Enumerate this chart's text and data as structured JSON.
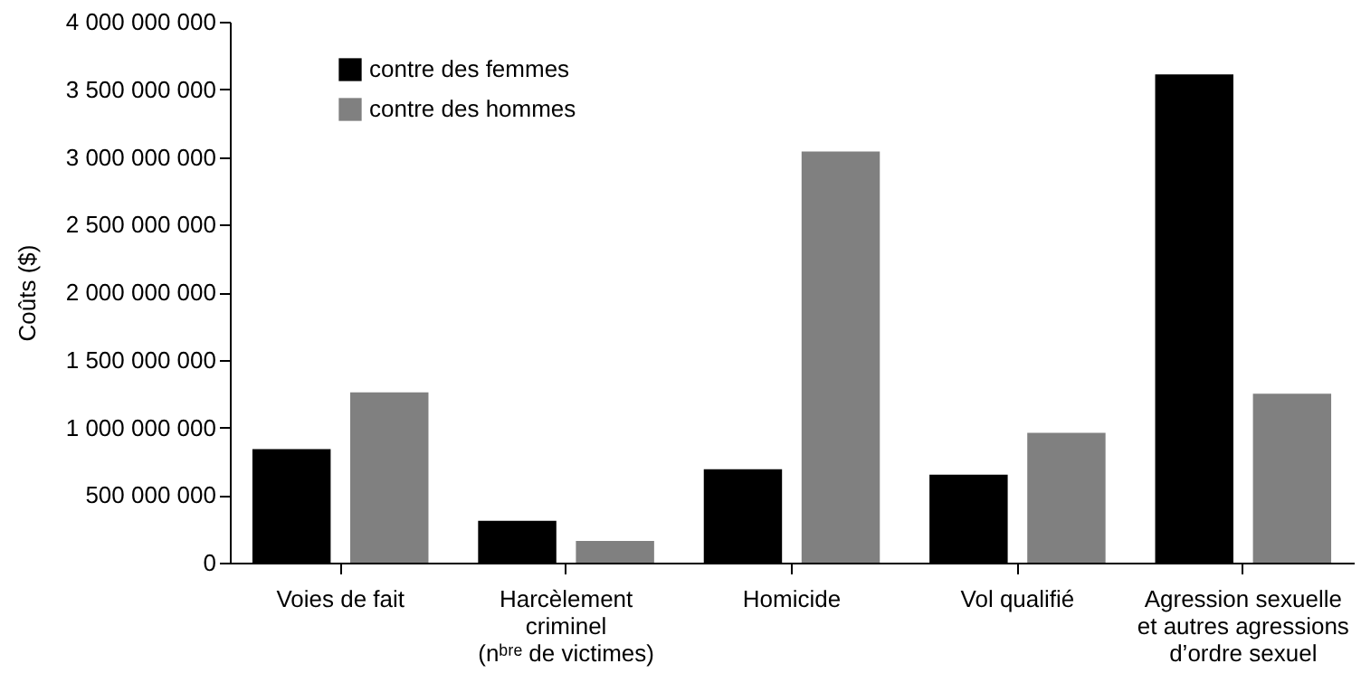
{
  "chart_data": {
    "type": "bar",
    "ylabel": "Coûts ($)",
    "categories": [
      "Voies de fait",
      "Harcèlement\ncriminel\n(nᵇʳᵉ de victimes)",
      "Homicide",
      "Vol qualifié",
      "Agression sexuelle\net autres agressions\nd’ordre sexuel"
    ],
    "series": [
      {
        "name": "contre des femmes",
        "color": "#000000",
        "values": [
          840000000,
          310000000,
          690000000,
          650000000,
          3610000000
        ]
      },
      {
        "name": "contre des hommes",
        "color": "#808080",
        "values": [
          1260000000,
          160000000,
          3040000000,
          960000000,
          1250000000
        ]
      }
    ],
    "ylim": [
      0,
      4000000000
    ],
    "yticks": [
      {
        "value": 0,
        "label": "0"
      },
      {
        "value": 500000000,
        "label": "500 000 000"
      },
      {
        "value": 1000000000,
        "label": "1 000 000 000"
      },
      {
        "value": 1500000000,
        "label": "1 500 000 000"
      },
      {
        "value": 2000000000,
        "label": "2 000 000 000"
      },
      {
        "value": 2500000000,
        "label": "2 500 000 000"
      },
      {
        "value": 3000000000,
        "label": "3 000 000 000"
      },
      {
        "value": 3500000000,
        "label": "3 500 000 000"
      },
      {
        "value": 4000000000,
        "label": "4 000 000 000"
      }
    ],
    "grid": false,
    "legend": "top left"
  }
}
